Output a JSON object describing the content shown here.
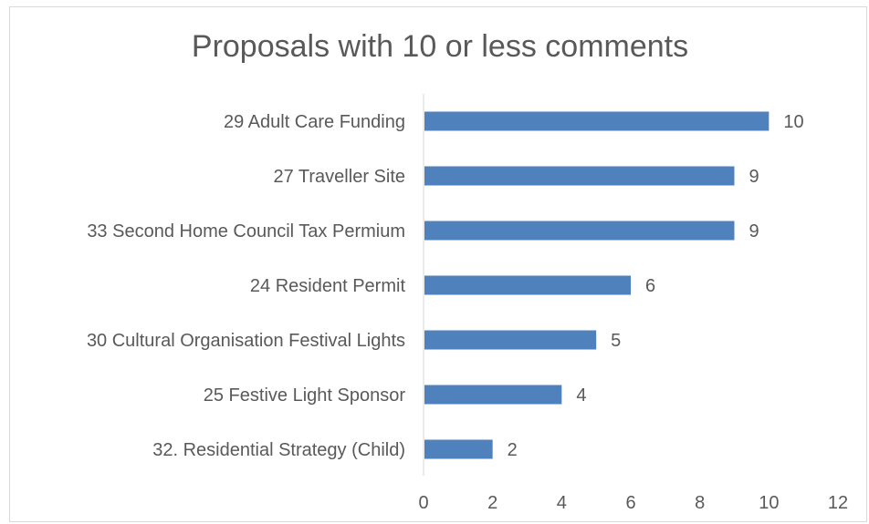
{
  "chart_data": {
    "type": "bar",
    "orientation": "horizontal",
    "title": "Proposals with 10 or less comments",
    "categories": [
      "29 Adult Care Funding",
      "27 Traveller Site",
      "33 Second Home Council Tax Permium",
      "24  Resident Permit",
      "30 Cultural Organisation Festival Lights",
      "25 Festive Light Sponsor",
      "32. Residential Strategy (Child)"
    ],
    "values": [
      10,
      9,
      9,
      6,
      5,
      4,
      2
    ],
    "xlim": [
      0,
      12
    ],
    "xticks": [
      0,
      2,
      4,
      6,
      8,
      10,
      12
    ],
    "xlabel": "",
    "ylabel": "",
    "grid": false,
    "legend": "none",
    "bar_color": "#4f81bd",
    "axis_color": "#d9d9d9",
    "text_color": "#595959"
  }
}
